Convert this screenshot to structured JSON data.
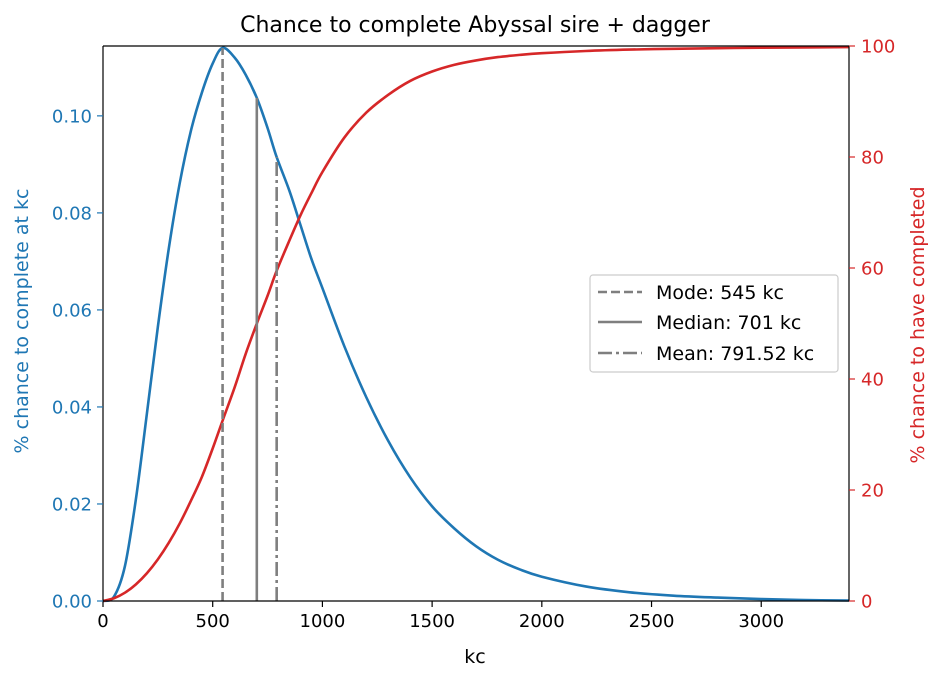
{
  "chart_data": {
    "type": "line",
    "title": "Chance to complete Abyssal sire + dagger",
    "xlabel": "kc",
    "ylabel_left": "% chance to complete at kc",
    "ylabel_right": "% chance to have completed",
    "xlim": [
      0,
      3400
    ],
    "ylim_left": [
      0,
      0.1144
    ],
    "ylim_right": [
      0,
      100
    ],
    "xticks": [
      0,
      500,
      1000,
      1500,
      2000,
      2500,
      3000
    ],
    "yticks_left": [
      0.0,
      0.02,
      0.04,
      0.06,
      0.08,
      0.1
    ],
    "yticks_right": [
      0,
      20,
      40,
      60,
      80,
      100
    ],
    "xtick_labels": [
      "0",
      "500",
      "1000",
      "1500",
      "2000",
      "2500",
      "3000"
    ],
    "ytick_labels_left": [
      "0.00",
      "0.02",
      "0.04",
      "0.06",
      "0.08",
      "0.10"
    ],
    "ytick_labels_right": [
      "0",
      "20",
      "40",
      "60",
      "80",
      "100"
    ],
    "grid": false,
    "legend_position": "center-right",
    "series": [
      {
        "axis": "left",
        "color": "#1f77b4",
        "x": [
          0,
          50,
          100,
          150,
          200,
          250,
          300,
          350,
          400,
          450,
          500,
          545,
          600,
          650,
          701,
          750,
          791.52,
          850,
          900,
          950,
          1000,
          1100,
          1200,
          1300,
          1400,
          1500,
          1600,
          1700,
          1800,
          1900,
          2000,
          2200,
          2400,
          2600,
          2800,
          3000,
          3200,
          3400
        ],
        "y": [
          0.0,
          0.0009,
          0.0072,
          0.021,
          0.0386,
          0.0565,
          0.0727,
          0.0862,
          0.0968,
          0.1047,
          0.1108,
          0.114,
          0.112,
          0.1085,
          0.1037,
          0.0975,
          0.0915,
          0.0845,
          0.0775,
          0.0705,
          0.0645,
          0.0525,
          0.042,
          0.033,
          0.0255,
          0.0195,
          0.015,
          0.0113,
          0.0085,
          0.0065,
          0.005,
          0.003,
          0.0018,
          0.0011,
          0.0007,
          0.0004,
          0.0002,
          0.0001
        ]
      },
      {
        "axis": "right",
        "color": "#d62728",
        "x": [
          0,
          50,
          100,
          150,
          200,
          250,
          300,
          350,
          400,
          450,
          500,
          545,
          600,
          650,
          701,
          750,
          791.52,
          850,
          900,
          950,
          1000,
          1100,
          1200,
          1300,
          1400,
          1500,
          1600,
          1700,
          1800,
          1900,
          2000,
          2200,
          2400,
          2600,
          2800,
          3000,
          3200,
          3400
        ],
        "y": [
          0.0,
          0.5,
          1.5,
          3.0,
          5.0,
          7.5,
          10.5,
          14.0,
          18.0,
          22.3,
          27.5,
          32.5,
          38.5,
          44.5,
          50.0,
          55.0,
          59.5,
          65.0,
          69.5,
          73.5,
          77.3,
          83.5,
          88.0,
          91.2,
          93.7,
          95.4,
          96.6,
          97.4,
          98.0,
          98.4,
          98.7,
          99.1,
          99.35,
          99.5,
          99.6,
          99.7,
          99.75,
          99.8
        ]
      }
    ],
    "markers": [
      {
        "label": "Mode: 545 kc",
        "x": 545,
        "style": "dashed",
        "color": "#7f7f7f",
        "y_end": 0.114
      },
      {
        "label": "Median: 701 kc",
        "x": 701,
        "style": "solid",
        "color": "#7f7f7f",
        "y_end": 0.1037
      },
      {
        "label": "Mean: 791.52 kc",
        "x": 791.52,
        "style": "dashdot",
        "color": "#7f7f7f",
        "y_end": 0.0915
      }
    ]
  }
}
